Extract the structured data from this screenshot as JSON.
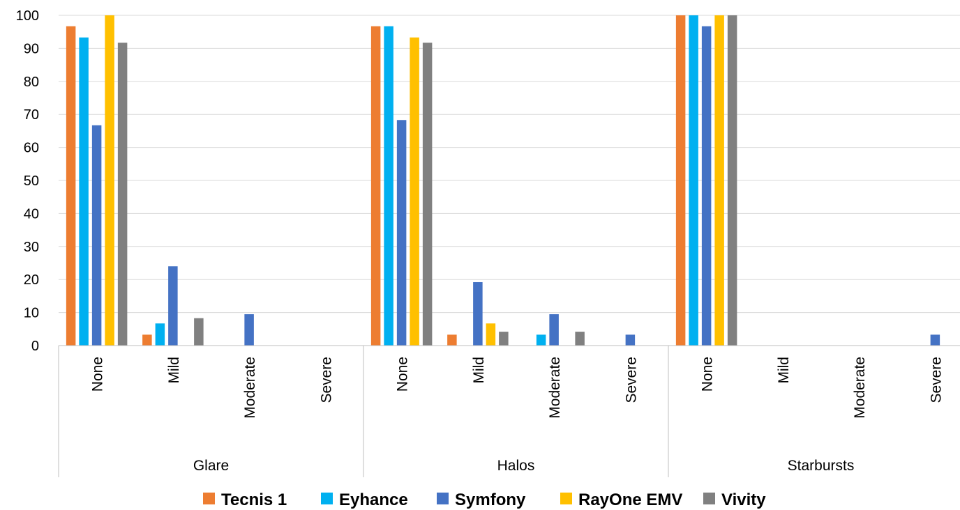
{
  "chart_data": {
    "type": "bar",
    "groups": [
      {
        "label": "Glare",
        "categories": [
          "None",
          "Mild",
          "Moderate",
          "Severe"
        ]
      },
      {
        "label": "Halos",
        "categories": [
          "None",
          "Mild",
          "Moderate",
          "Severe"
        ]
      },
      {
        "label": "Starbursts",
        "categories": [
          "None",
          "Mild",
          "Moderate",
          "Severe"
        ]
      }
    ],
    "series": [
      {
        "name": "Tecnis 1",
        "color": "#ED7D31",
        "values": [
          96.7,
          3.3,
          0,
          0,
          96.7,
          3.3,
          0,
          0,
          100,
          0,
          0,
          0
        ]
      },
      {
        "name": "Eyhance",
        "color": "#00B0F0",
        "values": [
          93.3,
          6.7,
          0,
          0,
          96.7,
          0,
          3.3,
          0,
          100,
          0,
          0,
          0
        ]
      },
      {
        "name": "Symfony",
        "color": "#4472C4",
        "values": [
          66.7,
          24,
          9.5,
          0,
          68.3,
          19.2,
          9.5,
          3.3,
          96.7,
          0,
          0,
          3.3
        ]
      },
      {
        "name": "RayOne EMV",
        "color": "#FFC000",
        "values": [
          100,
          0,
          0,
          0,
          93.3,
          6.7,
          0,
          0,
          100,
          0,
          0,
          0
        ]
      },
      {
        "name": "Vivity",
        "color": "#808080",
        "values": [
          91.7,
          8.3,
          0,
          0,
          91.7,
          4.2,
          4.2,
          0,
          100,
          0,
          0,
          0
        ]
      }
    ],
    "yticks": [
      "0",
      "10",
      "20",
      "30",
      "40",
      "50",
      "60",
      "70",
      "80",
      "90",
      "100"
    ],
    "ylim": [
      0,
      100
    ],
    "grid": true,
    "legend_position": "bottom"
  }
}
